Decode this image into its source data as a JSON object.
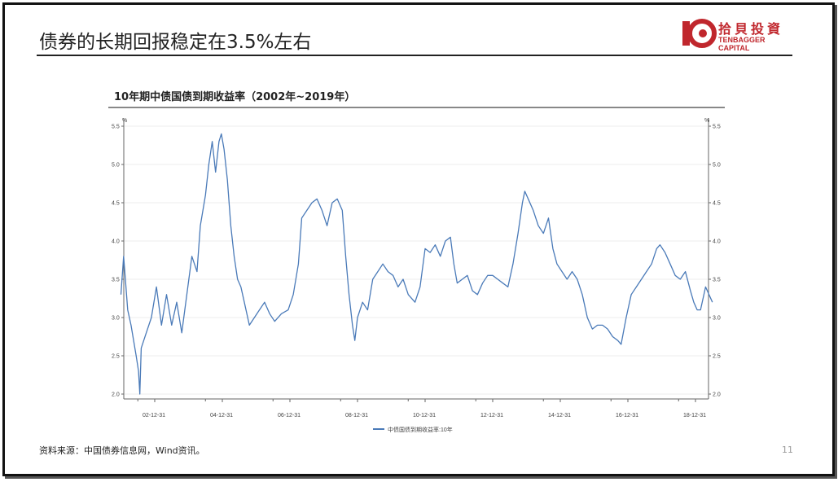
{
  "slide": {
    "title": "债券的长期回报稳定在3.5%左右",
    "source": "资料来源：中国债券信息网，Wind资讯。",
    "page_number": "11"
  },
  "logo": {
    "cn": "拾貝投資",
    "en": "TENBAGGER CAPITAL"
  },
  "colors": {
    "line": "#4a7ab8",
    "brand": "#c0272d"
  },
  "chart_data": {
    "type": "line",
    "title": "10年期中债国债到期收益率（2002年~2019年）",
    "ylabel": "%",
    "xlabel": "",
    "ylim": [
      1.8,
      5.55
    ],
    "yticks": [
      "2.0",
      "2.5",
      "3.0",
      "3.5",
      "4.0",
      "4.5",
      "5.0",
      "5.5"
    ],
    "xticks": [
      {
        "label": "02-12-31",
        "x": 2003
      },
      {
        "label": "04-12-31",
        "x": 2005
      },
      {
        "label": "06-12-31",
        "x": 2007
      },
      {
        "label": "08-12-31",
        "x": 2009
      },
      {
        "label": "10-12-31",
        "x": 2011
      },
      {
        "label": "12-12-31",
        "x": 2013
      },
      {
        "label": "14-12-31",
        "x": 2015
      },
      {
        "label": "16-12-31",
        "x": 2017
      },
      {
        "label": "18-12-31",
        "x": 2019
      }
    ],
    "xlim": [
      2002,
      2019.6
    ],
    "legend": {
      "position": "bottom",
      "entries": [
        "中债国债到期收益率:10年"
      ]
    },
    "series": [
      {
        "name": "中债国债到期收益率:10年",
        "points": [
          [
            2002.0,
            3.3
          ],
          [
            2002.08,
            3.8
          ],
          [
            2002.2,
            3.1
          ],
          [
            2002.3,
            2.9
          ],
          [
            2002.45,
            2.5
          ],
          [
            2002.52,
            2.3
          ],
          [
            2002.56,
            2.0
          ],
          [
            2002.6,
            2.6
          ],
          [
            2002.75,
            2.8
          ],
          [
            2002.9,
            3.0
          ],
          [
            2003.05,
            3.4
          ],
          [
            2003.2,
            2.9
          ],
          [
            2003.35,
            3.3
          ],
          [
            2003.5,
            2.9
          ],
          [
            2003.65,
            3.2
          ],
          [
            2003.8,
            2.8
          ],
          [
            2003.95,
            3.3
          ],
          [
            2004.1,
            3.8
          ],
          [
            2004.25,
            3.6
          ],
          [
            2004.35,
            4.2
          ],
          [
            2004.5,
            4.6
          ],
          [
            2004.6,
            5.0
          ],
          [
            2004.7,
            5.3
          ],
          [
            2004.8,
            4.9
          ],
          [
            2004.9,
            5.3
          ],
          [
            2004.97,
            5.4
          ],
          [
            2005.05,
            5.2
          ],
          [
            2005.15,
            4.8
          ],
          [
            2005.25,
            4.2
          ],
          [
            2005.35,
            3.8
          ],
          [
            2005.45,
            3.5
          ],
          [
            2005.55,
            3.4
          ],
          [
            2005.65,
            3.2
          ],
          [
            2005.8,
            2.9
          ],
          [
            2005.95,
            3.0
          ],
          [
            2006.1,
            3.1
          ],
          [
            2006.25,
            3.2
          ],
          [
            2006.4,
            3.05
          ],
          [
            2006.55,
            2.95
          ],
          [
            2006.75,
            3.05
          ],
          [
            2006.95,
            3.1
          ],
          [
            2007.1,
            3.3
          ],
          [
            2007.25,
            3.7
          ],
          [
            2007.35,
            4.3
          ],
          [
            2007.5,
            4.4
          ],
          [
            2007.65,
            4.5
          ],
          [
            2007.8,
            4.55
          ],
          [
            2007.95,
            4.4
          ],
          [
            2008.1,
            4.2
          ],
          [
            2008.25,
            4.5
          ],
          [
            2008.4,
            4.55
          ],
          [
            2008.55,
            4.4
          ],
          [
            2008.65,
            3.8
          ],
          [
            2008.75,
            3.3
          ],
          [
            2008.85,
            2.9
          ],
          [
            2008.92,
            2.7
          ],
          [
            2009.0,
            3.0
          ],
          [
            2009.15,
            3.2
          ],
          [
            2009.3,
            3.1
          ],
          [
            2009.45,
            3.5
          ],
          [
            2009.6,
            3.6
          ],
          [
            2009.75,
            3.7
          ],
          [
            2009.9,
            3.6
          ],
          [
            2010.05,
            3.55
          ],
          [
            2010.2,
            3.4
          ],
          [
            2010.35,
            3.5
          ],
          [
            2010.5,
            3.3
          ],
          [
            2010.7,
            3.2
          ],
          [
            2010.85,
            3.4
          ],
          [
            2011.0,
            3.9
          ],
          [
            2011.15,
            3.85
          ],
          [
            2011.3,
            3.95
          ],
          [
            2011.45,
            3.8
          ],
          [
            2011.6,
            4.0
          ],
          [
            2011.75,
            4.05
          ],
          [
            2011.85,
            3.7
          ],
          [
            2011.95,
            3.45
          ],
          [
            2012.1,
            3.5
          ],
          [
            2012.25,
            3.55
          ],
          [
            2012.4,
            3.35
          ],
          [
            2012.55,
            3.3
          ],
          [
            2012.7,
            3.45
          ],
          [
            2012.85,
            3.55
          ],
          [
            2013.0,
            3.55
          ],
          [
            2013.15,
            3.5
          ],
          [
            2013.3,
            3.45
          ],
          [
            2013.45,
            3.4
          ],
          [
            2013.6,
            3.7
          ],
          [
            2013.75,
            4.1
          ],
          [
            2013.88,
            4.5
          ],
          [
            2013.95,
            4.65
          ],
          [
            2014.05,
            4.55
          ],
          [
            2014.2,
            4.4
          ],
          [
            2014.35,
            4.2
          ],
          [
            2014.5,
            4.1
          ],
          [
            2014.65,
            4.3
          ],
          [
            2014.78,
            3.9
          ],
          [
            2014.9,
            3.7
          ],
          [
            2015.05,
            3.6
          ],
          [
            2015.2,
            3.5
          ],
          [
            2015.35,
            3.6
          ],
          [
            2015.5,
            3.5
          ],
          [
            2015.65,
            3.3
          ],
          [
            2015.8,
            3.0
          ],
          [
            2015.95,
            2.85
          ],
          [
            2016.1,
            2.9
          ],
          [
            2016.25,
            2.9
          ],
          [
            2016.4,
            2.85
          ],
          [
            2016.55,
            2.75
          ],
          [
            2016.7,
            2.7
          ],
          [
            2016.8,
            2.65
          ],
          [
            2016.95,
            3.0
          ],
          [
            2017.1,
            3.3
          ],
          [
            2017.25,
            3.4
          ],
          [
            2017.4,
            3.5
          ],
          [
            2017.55,
            3.6
          ],
          [
            2017.7,
            3.7
          ],
          [
            2017.85,
            3.9
          ],
          [
            2017.95,
            3.95
          ],
          [
            2018.1,
            3.85
          ],
          [
            2018.25,
            3.7
          ],
          [
            2018.4,
            3.55
          ],
          [
            2018.55,
            3.5
          ],
          [
            2018.7,
            3.6
          ],
          [
            2018.85,
            3.35
          ],
          [
            2018.95,
            3.2
          ],
          [
            2019.05,
            3.1
          ],
          [
            2019.15,
            3.1
          ],
          [
            2019.3,
            3.4
          ],
          [
            2019.4,
            3.3
          ],
          [
            2019.5,
            3.2
          ]
        ]
      }
    ]
  }
}
